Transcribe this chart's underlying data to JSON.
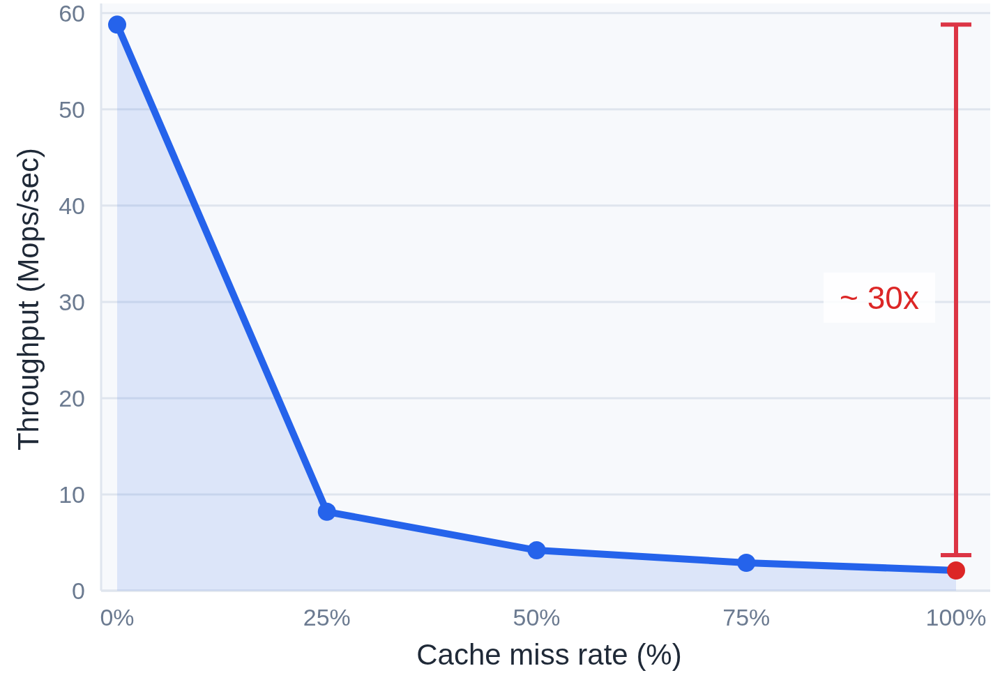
{
  "chart_data": {
    "type": "area",
    "xlabel": "Cache miss rate (%)",
    "ylabel": "Throughput (Mops/sec)",
    "categories": [
      "0%",
      "25%",
      "50%",
      "75%",
      "100%"
    ],
    "series": [
      {
        "color": "#2563eb",
        "colors": [
          "#2563eb",
          "#2563eb",
          "#2563eb",
          "#2563eb",
          "#dc2626"
        ],
        "values": [
          58.8,
          8.2,
          4.2,
          2.9,
          2.1
        ]
      }
    ],
    "ylim": [
      0,
      61
    ],
    "yticks": [
      0,
      10,
      20,
      30,
      40,
      50,
      60
    ],
    "grid": "y",
    "marker": "circle",
    "line_style": "solid",
    "annotations": [
      "~ 30x"
    ]
  }
}
